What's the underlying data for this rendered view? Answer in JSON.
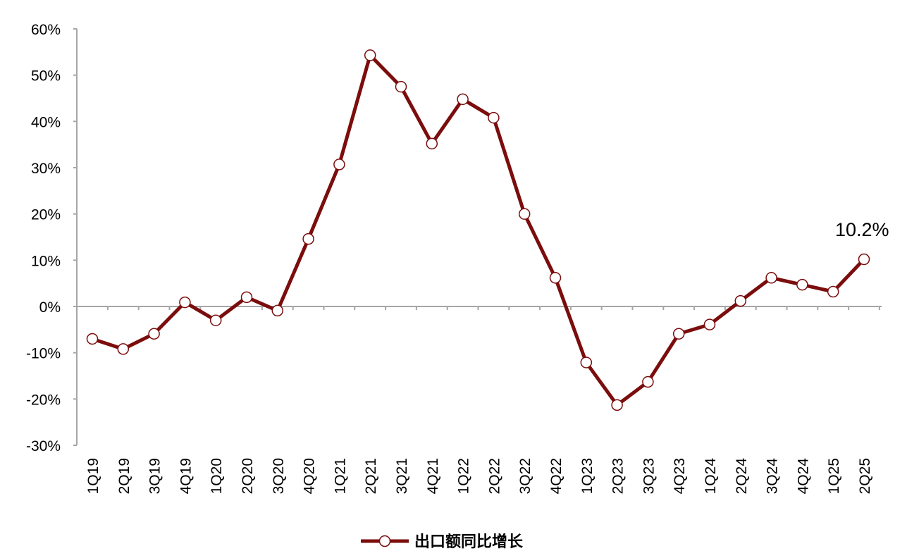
{
  "chart_data": {
    "type": "line",
    "categories": [
      "1Q19",
      "2Q19",
      "3Q19",
      "4Q19",
      "1Q20",
      "2Q20",
      "3Q20",
      "4Q20",
      "1Q21",
      "2Q21",
      "3Q21",
      "4Q21",
      "1Q22",
      "2Q22",
      "3Q22",
      "4Q22",
      "1Q23",
      "2Q23",
      "3Q23",
      "4Q23",
      "1Q24",
      "2Q24",
      "3Q24",
      "4Q24",
      "1Q25",
      "2Q25"
    ],
    "series": [
      {
        "name": "出口额同比增长",
        "values": [
          -7.0,
          -9.2,
          -5.9,
          0.9,
          -3.0,
          2.0,
          -0.9,
          14.6,
          30.7,
          54.3,
          47.5,
          35.2,
          44.8,
          40.8,
          20.0,
          6.2,
          -12.1,
          -21.3,
          -16.3,
          -5.9,
          -3.9,
          1.2,
          6.2,
          4.7,
          3.2,
          10.2
        ],
        "color": "#7b0d0d",
        "marker": "circle"
      }
    ],
    "ylim": [
      -30,
      60
    ],
    "yticks": [
      "-30%",
      "-20%",
      "-10%",
      "0%",
      "10%",
      "20%",
      "30%",
      "40%",
      "50%",
      "60%"
    ],
    "annotations": [
      {
        "text": "10.2%",
        "category": "2Q25"
      }
    ],
    "legend_position": "bottom",
    "grid": false,
    "title": "",
    "xlabel": "",
    "ylabel": ""
  }
}
